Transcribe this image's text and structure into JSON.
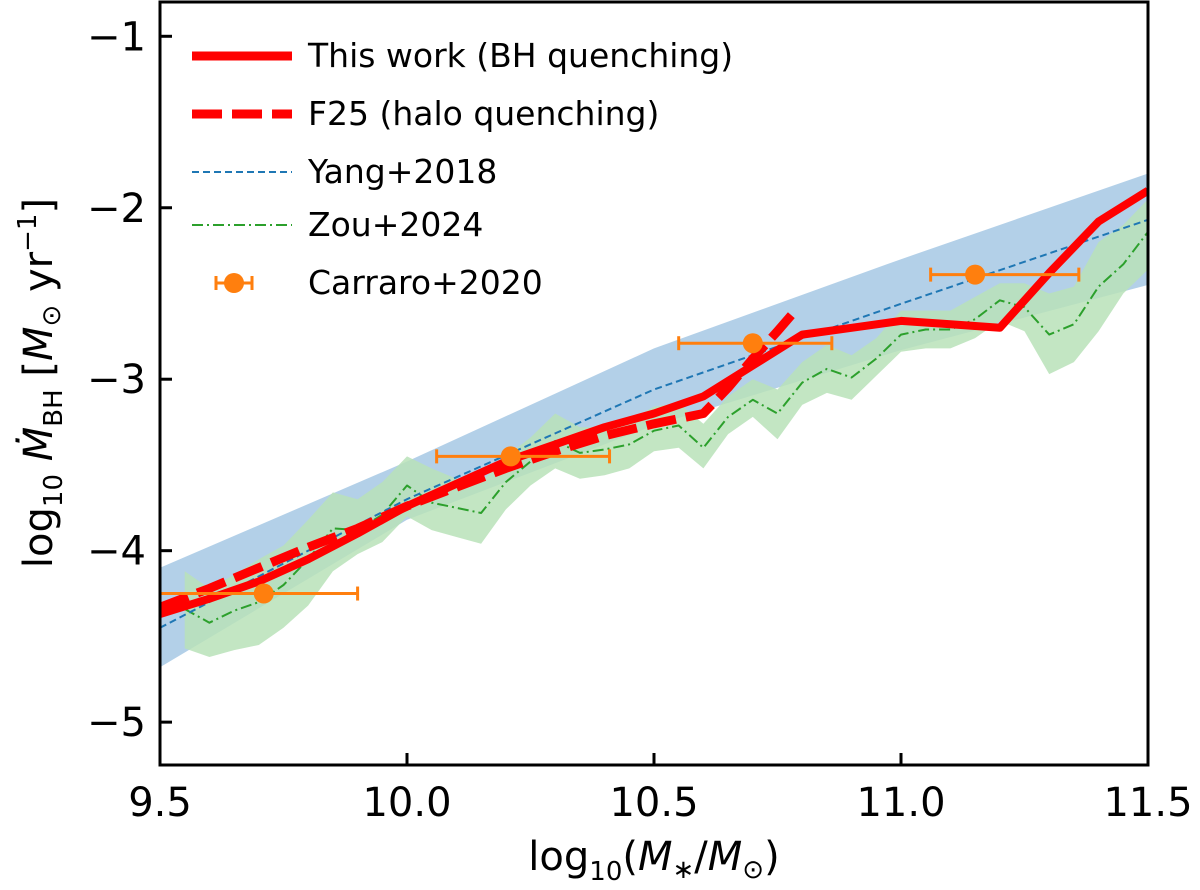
{
  "chart_data": {
    "type": "line",
    "xlabel": "log10(M*/M⊙)",
    "ylabel": "log10 Ṁ_BH [M⊙ yr^-1]",
    "xlim": [
      9.5,
      11.5
    ],
    "ylim": [
      -5.25,
      -0.8
    ],
    "xticks": [
      9.5,
      10.0,
      10.5,
      11.0,
      11.5
    ],
    "xtick_labels": [
      "9.5",
      "10.0",
      "10.5",
      "11.0",
      "11.5"
    ],
    "yticks": [
      -5,
      -4,
      -3,
      -2,
      -1
    ],
    "ytick_labels": [
      "−5",
      "−4",
      "−3",
      "−2",
      "−1"
    ],
    "legend_position": "top-left",
    "series": [
      {
        "name": "This work (BH quenching)",
        "style": "solid-thick",
        "color": "#ff0000",
        "x": [
          9.5,
          9.6,
          9.7,
          9.8,
          9.9,
          10.0,
          10.1,
          10.2,
          10.3,
          10.4,
          10.5,
          10.6,
          10.7,
          10.8,
          10.9,
          11.0,
          11.1,
          11.2,
          11.3,
          11.4,
          11.5
        ],
        "y": [
          -4.37,
          -4.28,
          -4.18,
          -4.05,
          -3.9,
          -3.74,
          -3.61,
          -3.48,
          -3.38,
          -3.28,
          -3.2,
          -3.1,
          -2.92,
          -2.74,
          -2.7,
          -2.66,
          -2.68,
          -2.7,
          -2.38,
          -2.08,
          -1.9
        ]
      },
      {
        "name": "F25 (halo quenching)",
        "style": "dashed-thick",
        "color": "#ff0000",
        "x": [
          9.5,
          9.6,
          9.7,
          9.8,
          9.9,
          10.0,
          10.1,
          10.2,
          10.3,
          10.4,
          10.5,
          10.6,
          10.65,
          10.7,
          10.75,
          10.78
        ],
        "y": [
          -4.33,
          -4.22,
          -4.1,
          -3.98,
          -3.87,
          -3.74,
          -3.63,
          -3.52,
          -3.42,
          -3.33,
          -3.26,
          -3.2,
          -3.05,
          -2.88,
          -2.72,
          -2.62
        ]
      },
      {
        "name": "Yang+2018",
        "style": "dashed-thin",
        "color": "#1f77b4",
        "x": [
          9.5,
          10.0,
          10.5,
          11.0,
          11.5
        ],
        "y": [
          -4.45,
          -3.7,
          -3.06,
          -2.56,
          -2.07
        ]
      },
      {
        "name": "Zou+2024",
        "style": "dashdot-thin",
        "color": "#2ca02c",
        "x": [
          9.55,
          9.6,
          9.65,
          9.7,
          9.75,
          9.8,
          9.85,
          9.9,
          9.95,
          10.0,
          10.05,
          10.1,
          10.15,
          10.2,
          10.25,
          10.3,
          10.35,
          10.4,
          10.45,
          10.5,
          10.55,
          10.6,
          10.65,
          10.7,
          10.75,
          10.8,
          10.85,
          10.9,
          10.95,
          11.0,
          11.05,
          11.1,
          11.15,
          11.2,
          11.25,
          11.3,
          11.35,
          11.4,
          11.45,
          11.5
        ],
        "y": [
          -4.34,
          -4.42,
          -4.35,
          -4.3,
          -4.2,
          -4.05,
          -3.87,
          -3.88,
          -3.79,
          -3.62,
          -3.72,
          -3.75,
          -3.78,
          -3.6,
          -3.48,
          -3.36,
          -3.43,
          -3.41,
          -3.38,
          -3.3,
          -3.27,
          -3.4,
          -3.22,
          -3.12,
          -3.2,
          -3.02,
          -2.94,
          -2.99,
          -2.88,
          -2.74,
          -2.71,
          -2.71,
          -2.65,
          -2.54,
          -2.58,
          -2.74,
          -2.68,
          -2.46,
          -2.33,
          -2.14
        ]
      },
      {
        "name": "Carraro+2020",
        "style": "errorbar",
        "color": "#ff7f0e",
        "x": [
          9.71,
          10.21,
          10.7,
          11.15
        ],
        "y": [
          -4.25,
          -3.45,
          -2.79,
          -2.39
        ],
        "xerr_low": [
          0.21,
          0.15,
          0.15,
          0.09
        ],
        "xerr_high": [
          0.19,
          0.2,
          0.16,
          0.21
        ]
      }
    ],
    "bands": [
      {
        "name": "Yang+2018 band",
        "color": "#a6c8e4",
        "x": [
          9.5,
          10.0,
          10.5,
          11.0,
          11.5
        ],
        "lower": [
          -4.68,
          -3.82,
          -3.27,
          -2.83,
          -2.45
        ],
        "upper": [
          -4.1,
          -3.48,
          -2.82,
          -2.3,
          -1.8
        ]
      },
      {
        "name": "Zou+2024 band",
        "color": "#b9e2b9",
        "x": [
          9.55,
          9.6,
          9.65,
          9.7,
          9.75,
          9.8,
          9.85,
          9.9,
          9.95,
          10.0,
          10.05,
          10.1,
          10.15,
          10.2,
          10.25,
          10.3,
          10.35,
          10.4,
          10.45,
          10.5,
          10.55,
          10.6,
          10.65,
          10.7,
          10.75,
          10.8,
          10.85,
          10.9,
          10.95,
          11.0,
          11.05,
          11.1,
          11.15,
          11.2,
          11.25,
          11.3,
          11.35,
          11.4,
          11.45,
          11.5
        ],
        "lower": [
          -4.57,
          -4.62,
          -4.58,
          -4.55,
          -4.45,
          -4.32,
          -4.12,
          -4.02,
          -3.95,
          -3.8,
          -3.88,
          -3.92,
          -3.96,
          -3.76,
          -3.62,
          -3.52,
          -3.58,
          -3.56,
          -3.52,
          -3.42,
          -3.4,
          -3.52,
          -3.32,
          -3.22,
          -3.35,
          -3.15,
          -3.08,
          -3.12,
          -2.98,
          -2.84,
          -2.82,
          -2.82,
          -2.76,
          -2.66,
          -2.72,
          -2.97,
          -2.9,
          -2.72,
          -2.5,
          -2.36
        ],
        "upper": [
          -4.12,
          -4.22,
          -4.14,
          -4.05,
          -3.97,
          -3.82,
          -3.66,
          -3.7,
          -3.6,
          -3.45,
          -3.52,
          -3.58,
          -3.6,
          -3.45,
          -3.34,
          -3.2,
          -3.28,
          -3.28,
          -3.24,
          -3.16,
          -3.14,
          -3.26,
          -3.1,
          -3.0,
          -3.06,
          -2.9,
          -2.8,
          -2.86,
          -2.76,
          -2.6,
          -2.6,
          -2.6,
          -2.52,
          -2.44,
          -2.44,
          -2.5,
          -2.46,
          -2.2,
          -2.1,
          -1.95
        ]
      }
    ]
  }
}
